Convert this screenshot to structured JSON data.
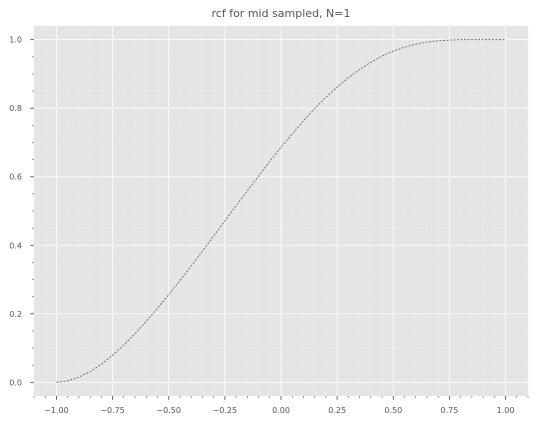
{
  "chart_data": {
    "type": "line",
    "title": "rcf for mid sampled, N=1",
    "xlabel": "",
    "ylabel": "",
    "xlim": [
      -1.1,
      1.1
    ],
    "ylim": [
      -0.04,
      1.04
    ],
    "x_ticks": [
      "−1.00",
      "−0.75",
      "−0.50",
      "−0.25",
      "0.00",
      "0.25",
      "0.50",
      "0.75",
      "1.00"
    ],
    "x_tick_values": [
      -1.0,
      -0.75,
      -0.5,
      -0.25,
      0.0,
      0.25,
      0.5,
      0.75,
      1.0
    ],
    "y_ticks": [
      "0.0",
      "0.2",
      "0.4",
      "0.6",
      "0.8",
      "1.0"
    ],
    "y_tick_values": [
      0.0,
      0.2,
      0.4,
      0.6,
      0.8,
      1.0
    ],
    "grid": true,
    "series": [
      {
        "line_style": "dashed",
        "color": "#555555",
        "x": [
          -1.0,
          -0.95,
          -0.9,
          -0.85,
          -0.8,
          -0.75,
          -0.7,
          -0.65,
          -0.6,
          -0.55,
          -0.5,
          -0.45,
          -0.4,
          -0.35,
          -0.3,
          -0.25,
          -0.2,
          -0.15,
          -0.1,
          -0.05,
          0.0,
          0.05,
          0.1,
          0.15,
          0.2,
          0.25,
          0.3,
          0.35,
          0.4,
          0.45,
          0.5,
          0.55,
          0.6,
          0.65,
          0.7,
          0.75,
          0.8,
          0.85,
          0.9,
          0.95,
          1.0
        ],
        "y": [
          0.0,
          0.004,
          0.015,
          0.031,
          0.053,
          0.079,
          0.109,
          0.142,
          0.178,
          0.216,
          0.256,
          0.297,
          0.339,
          0.383,
          0.427,
          0.471,
          0.515,
          0.559,
          0.602,
          0.645,
          0.686,
          0.725,
          0.763,
          0.799,
          0.832,
          0.862,
          0.889,
          0.913,
          0.934,
          0.952,
          0.967,
          0.978,
          0.987,
          0.993,
          0.997,
          0.999,
          1.0,
          1.0,
          1.0,
          1.0,
          1.0
        ]
      }
    ],
    "colors": {
      "plot_background": "#e5e5e5",
      "grid_major": "#ffffff",
      "grid_minor": "#ececec",
      "text": "#555555"
    }
  }
}
